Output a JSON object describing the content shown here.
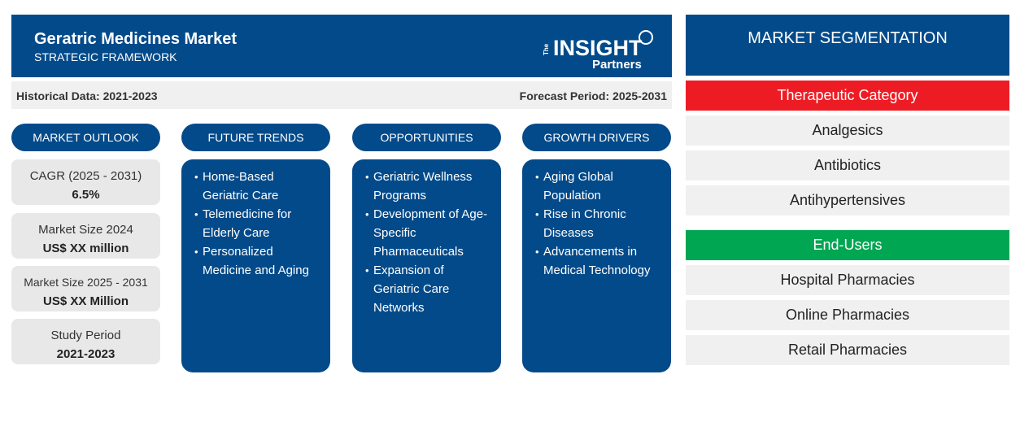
{
  "header": {
    "title": "Geratric Medicines Market",
    "subtitle": "STRATEGIC FRAMEWORK",
    "logo_text": "The INSIGHT Partners"
  },
  "subheader": {
    "historical": "Historical Data: 2021-2023",
    "forecast": "Forecast Period: 2025-2031"
  },
  "columns": [
    {
      "title": "MARKET OUTLOOK"
    },
    {
      "title": "FUTURE TRENDS",
      "items": [
        "Home-Based Geriatric Care",
        "Telemedicine for Elderly Care",
        "Personalized Medicine and Aging"
      ]
    },
    {
      "title": "OPPORTUNITIES",
      "items": [
        "Geriatric Wellness Programs",
        "Development of Age-Specific Pharmaceuticals",
        "Expansion of Geriatric Care Networks"
      ]
    },
    {
      "title": "GROWTH DRIVERS",
      "items": [
        "Aging Global Population",
        "Rise in Chronic Diseases",
        "Advancements in Medical Technology"
      ]
    }
  ],
  "outlook": [
    {
      "label": "CAGR (2025 - 2031)",
      "value": "6.5%"
    },
    {
      "label": "Market Size 2024",
      "value": "US$ XX million"
    },
    {
      "label": "Market Size 2025 - 2031",
      "value": "US$ XX Million"
    },
    {
      "label": "Study Period",
      "value": "2021-2023"
    }
  ],
  "segmentation": {
    "title": "MARKET SEGMENTATION",
    "groups": [
      {
        "title": "Therapeutic Category",
        "color": "#ed1c24",
        "items": [
          "Analgesics",
          "Antibiotics",
          "Antihypertensives"
        ]
      },
      {
        "title": "End-Users",
        "color": "#00a651",
        "items": [
          "Hospital Pharmacies",
          "Online Pharmacies",
          "Retail Pharmacies"
        ]
      }
    ]
  },
  "colors": {
    "primary": "#034a8a",
    "box": "#e8e8e8"
  }
}
